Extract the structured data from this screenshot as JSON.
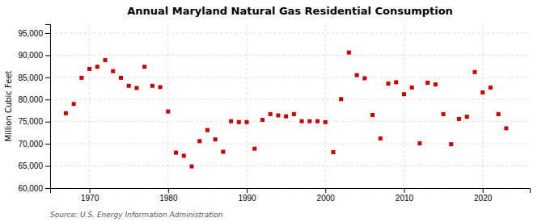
{
  "chart_data": {
    "type": "scatter",
    "title": "Annual Maryland Natural Gas Residential Consumption",
    "ylabel": "Million Cubic Feet",
    "annotation": "Source: U.S. Energy Information Administration",
    "color": "#cc0000",
    "marker": "square",
    "grid": true,
    "xlim": [
      1965,
      2026
    ],
    "xticks": [
      1970,
      1980,
      1990,
      2000,
      2010,
      2020
    ],
    "ylim": [
      60000,
      97000
    ],
    "yticks": [
      {
        "value": 60000,
        "label": "60,000"
      },
      {
        "value": 65000,
        "label": "65,000"
      },
      {
        "value": 70000,
        "label": "70,000"
      },
      {
        "value": 75000,
        "label": "75,000"
      },
      {
        "value": 80000,
        "label": "80,000"
      },
      {
        "value": 85000,
        "label": "85,000"
      },
      {
        "value": 90000,
        "label": "90,000"
      },
      {
        "value": 95000,
        "label": "95,000"
      }
    ],
    "x": [
      1967,
      1968,
      1969,
      1970,
      1971,
      1972,
      1973,
      1974,
      1975,
      1976,
      1977,
      1978,
      1979,
      1980,
      1981,
      1982,
      1983,
      1984,
      1985,
      1986,
      1987,
      1988,
      1989,
      1990,
      1991,
      1992,
      1993,
      1994,
      1995,
      1996,
      1997,
      1998,
      1999,
      2000,
      2001,
      2002,
      2003,
      2004,
      2005,
      2006,
      2007,
      2008,
      2009,
      2010,
      2011,
      2012,
      2013,
      2014,
      2015,
      2016,
      2017,
      2018,
      2019,
      2020,
      2021,
      2022,
      2023
    ],
    "values": [
      76900,
      79000,
      84900,
      86900,
      87400,
      88900,
      86400,
      84900,
      83100,
      82600,
      87400,
      83100,
      82800,
      77300,
      68000,
      67300,
      64900,
      70600,
      73100,
      71000,
      68200,
      75100,
      74900,
      74900,
      68900,
      75400,
      76700,
      76400,
      76200,
      76700,
      75100,
      75100,
      75100,
      74900,
      68100,
      80100,
      90600,
      85500,
      84800,
      76500,
      71200,
      83600,
      83900,
      81200,
      82700,
      70100,
      83800,
      83400,
      76700,
      69900,
      75600,
      76100,
      86200,
      81600,
      82700,
      76700,
      73500
    ]
  }
}
